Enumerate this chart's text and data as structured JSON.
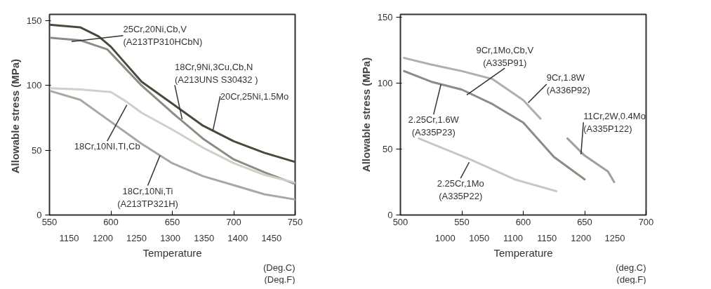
{
  "chart_data": [
    {
      "type": "line",
      "ylabel": "Allowable stress  (MPa)",
      "xlabel": "Temperature",
      "xlim": [
        550,
        750
      ],
      "xticks": [
        550,
        600,
        650,
        700,
        750
      ],
      "x2lim": [
        1121,
        1485
      ],
      "x2ticks": [
        1150,
        1200,
        1250,
        1300,
        1350,
        1400,
        1450
      ],
      "ylim": [
        0,
        155
      ],
      "yticks": [
        0,
        50,
        100,
        150
      ],
      "grid": false,
      "series": [
        {
          "color": "#4a4a3c",
          "x": [
            550,
            575,
            590,
            600,
            612,
            625,
            650,
            675,
            700,
            725,
            750
          ],
          "values": [
            147,
            145,
            138,
            130,
            117,
            103,
            86,
            69,
            57,
            48,
            41
          ]
        },
        {
          "color": "#8c8c84",
          "x": [
            550,
            575,
            597,
            608,
            625,
            650,
            675,
            700,
            725,
            750
          ],
          "values": [
            137,
            135,
            128,
            117,
            100,
            79,
            59,
            43,
            33,
            24
          ]
        },
        {
          "color": "#d0d0c8",
          "x": [
            550,
            575,
            600,
            612,
            625,
            650,
            675,
            700,
            725,
            750
          ],
          "values": [
            98,
            97,
            95,
            88,
            79,
            66,
            52,
            40,
            31,
            25
          ]
        },
        {
          "color": "#a8a8a0",
          "x": [
            550,
            575,
            600,
            625,
            650,
            675,
            700,
            725,
            750
          ],
          "values": [
            96,
            89,
            72,
            55,
            40,
            30,
            23,
            16,
            12
          ]
        }
      ],
      "annotations": [
        {
          "text": "25Cr,20Ni,Cb,V\n(A213TP310HCbN)",
          "x": 568,
          "y": 134
        },
        {
          "text": "18Cr,9Ni,3Cu,Cb,N\n(A213UNS S30432 )",
          "x": 658,
          "y": 74
        },
        {
          "text": "20Cr,25Ni,1.5Mo",
          "x": 683,
          "y": 65
        },
        {
          "text": "18Cr,10NI,TI,Cb",
          "x": 613,
          "y": 85
        },
        {
          "text": "18Cr,10Ni,Ti\n(A213TP321H)",
          "x": 640,
          "y": 46
        },
        "(Deg.C)",
        "(Deg.F)"
      ]
    },
    {
      "type": "line",
      "ylabel": "Allowable stress (MPa)",
      "xlabel": "Temperature",
      "xlim": [
        500,
        700
      ],
      "xticks": [
        500,
        550,
        600,
        650,
        700
      ],
      "x2lim": [
        934,
        1296
      ],
      "x2ticks": [
        1000,
        1050,
        1100,
        1150,
        1200,
        1250
      ],
      "ylim": [
        0,
        152
      ],
      "yticks": [
        0,
        50,
        100,
        150
      ],
      "grid": false,
      "series": [
        {
          "color": "#8c8c84",
          "x": [
            503,
            525,
            550,
            575,
            600,
            625,
            650
          ],
          "values": [
            109,
            101,
            95,
            84,
            70,
            44,
            27
          ]
        },
        {
          "color": "#b0b0a8",
          "x": [
            503,
            525,
            550,
            575,
            600,
            614
          ],
          "values": [
            119,
            114,
            109,
            103,
            87,
            73
          ]
        },
        {
          "color": "#a0a098",
          "x": [
            636,
            650,
            669,
            674
          ],
          "values": [
            58,
            45,
            33,
            25
          ]
        },
        {
          "color": "#c8c8c0",
          "x": [
            515,
            557,
            593,
            627
          ],
          "values": [
            58,
            42,
            27,
            18
          ]
        }
      ],
      "annotations": [
        {
          "text": "9Cr,1Mo,Cb,V\n(A335P91)",
          "x": 554,
          "y": 91
        },
        {
          "text": "9Cr,1.8W\n(A336P92)",
          "x": 604,
          "y": 85
        },
        {
          "text": "11Cr,2W,0.4Mo\n(A335P122)",
          "x": 647,
          "y": 46
        },
        {
          "text": "2.25Cr,1.6W\n(A335P23)",
          "x": 533,
          "y": 99
        },
        {
          "text": "2.25Cr,1Mo\n(A335P22)",
          "x": 556,
          "y": 40
        },
        "(deg.C)",
        "(deg.F)"
      ]
    }
  ]
}
